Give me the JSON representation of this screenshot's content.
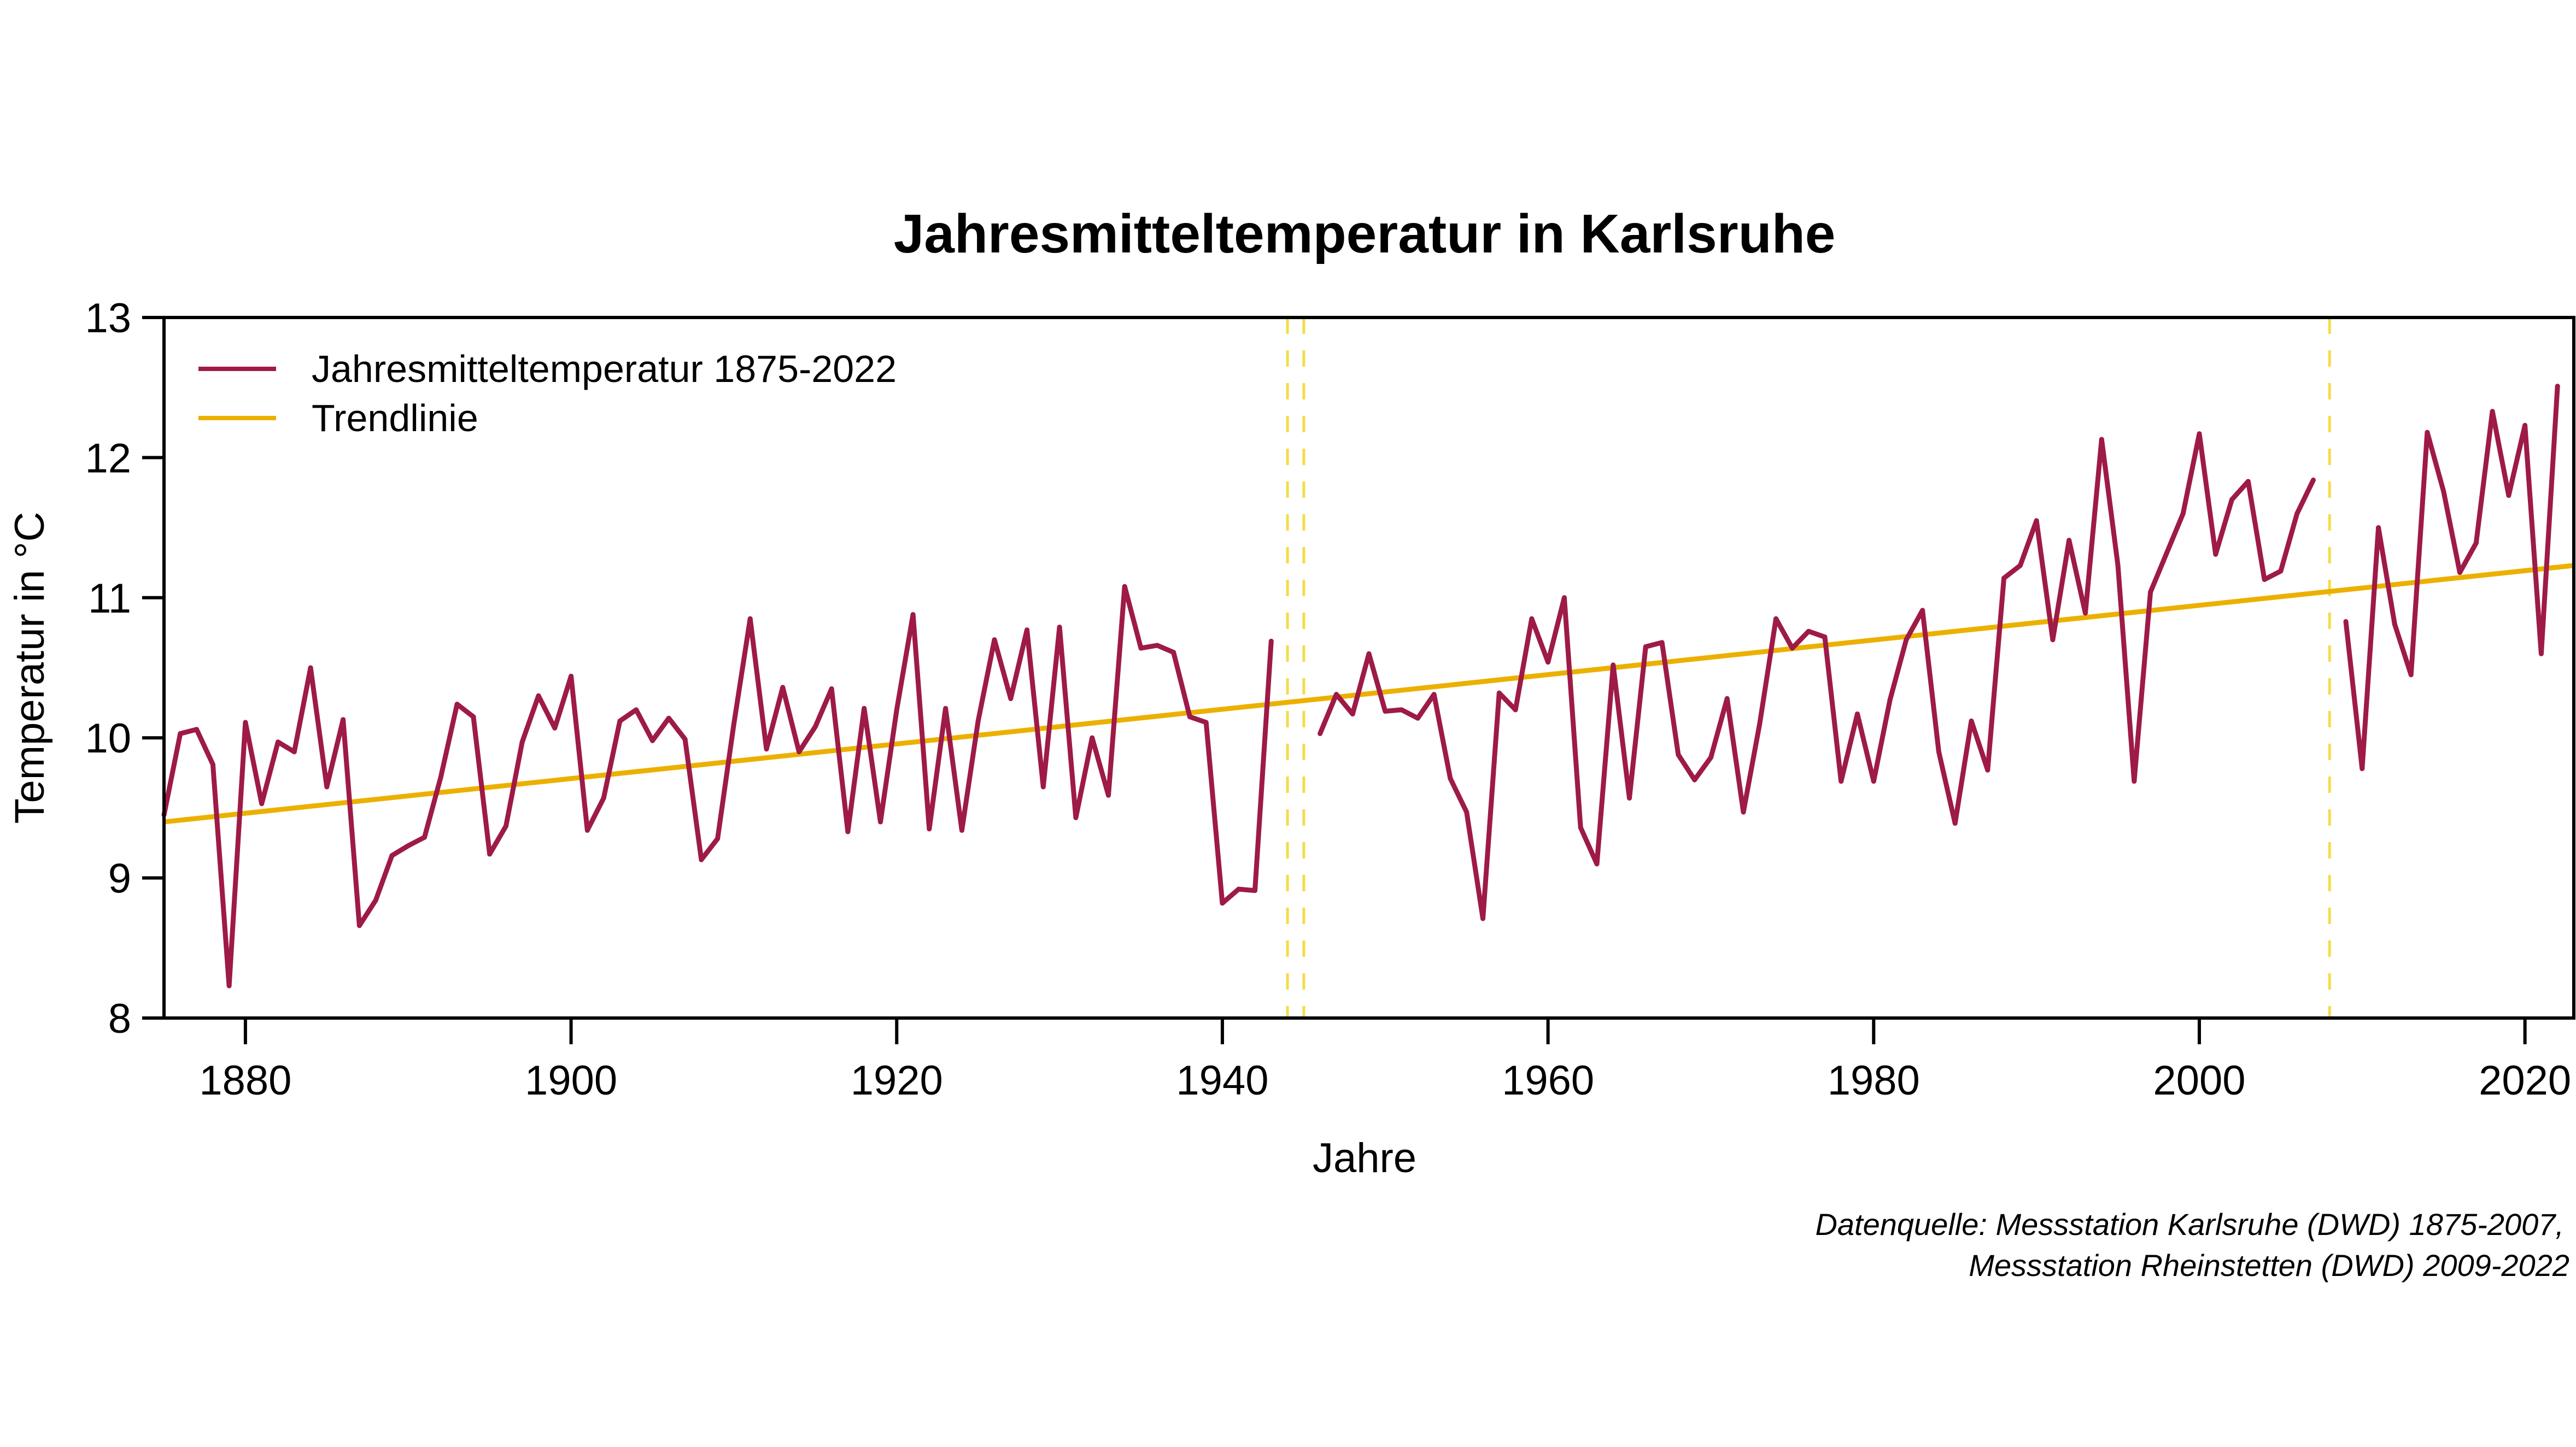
{
  "chart_data": {
    "type": "line",
    "title": "Jahresmitteltemperatur in Karlsruhe",
    "xlabel": "Jahre",
    "ylabel": "Temperatur in °C",
    "xlim": [
      1875,
      2023
    ],
    "ylim": [
      8,
      13
    ],
    "x_ticks": [
      1880,
      1900,
      1920,
      1940,
      1960,
      1980,
      2000,
      2020
    ],
    "y_ticks": [
      8,
      9,
      10,
      11,
      12,
      13
    ],
    "grid": false,
    "legend_position": "top-left",
    "colors": {
      "series": "#9e1a47",
      "trend": "#ebb000",
      "marker_lines": "#f5dc46",
      "axis": "#000000"
    },
    "series": [
      {
        "name": "Jahresmitteltemperatur 1875-2022",
        "x": [
          1875,
          1876,
          1877,
          1878,
          1879,
          1880,
          1881,
          1882,
          1883,
          1884,
          1885,
          1886,
          1887,
          1888,
          1889,
          1890,
          1891,
          1892,
          1893,
          1894,
          1895,
          1896,
          1897,
          1898,
          1899,
          1900,
          1901,
          1902,
          1903,
          1904,
          1905,
          1906,
          1907,
          1908,
          1909,
          1910,
          1911,
          1912,
          1913,
          1914,
          1915,
          1916,
          1917,
          1918,
          1919,
          1920,
          1921,
          1922,
          1923,
          1924,
          1925,
          1926,
          1927,
          1928,
          1929,
          1930,
          1931,
          1932,
          1933,
          1934,
          1935,
          1936,
          1937,
          1938,
          1939,
          1940,
          1941,
          1942,
          1943,
          1944,
          1945,
          1946,
          1947,
          1948,
          1949,
          1950,
          1951,
          1952,
          1953,
          1954,
          1955,
          1956,
          1957,
          1958,
          1959,
          1960,
          1961,
          1962,
          1963,
          1964,
          1965,
          1966,
          1967,
          1968,
          1969,
          1970,
          1971,
          1972,
          1973,
          1974,
          1975,
          1976,
          1977,
          1978,
          1979,
          1980,
          1981,
          1982,
          1983,
          1984,
          1985,
          1986,
          1987,
          1988,
          1989,
          1990,
          1991,
          1992,
          1993,
          1994,
          1995,
          1996,
          1997,
          1998,
          1999,
          2000,
          2001,
          2002,
          2003,
          2004,
          2005,
          2006,
          2007,
          2008,
          2009,
          2010,
          2011,
          2012,
          2013,
          2014,
          2015,
          2016,
          2017,
          2018,
          2019,
          2020,
          2021,
          2022
        ],
        "values": [
          9.45,
          10.03,
          10.06,
          9.81,
          8.23,
          10.11,
          9.53,
          9.97,
          9.9,
          10.5,
          9.65,
          10.13,
          8.66,
          8.84,
          9.16,
          9.23,
          9.29,
          9.72,
          10.24,
          10.15,
          9.17,
          9.37,
          9.97,
          10.3,
          10.07,
          10.44,
          9.34,
          9.57,
          10.12,
          10.2,
          9.98,
          10.14,
          9.99,
          9.13,
          9.28,
          10.1,
          10.85,
          9.92,
          10.36,
          9.9,
          10.08,
          10.35,
          9.33,
          10.21,
          9.4,
          10.2,
          10.88,
          9.35,
          10.21,
          9.34,
          10.12,
          10.7,
          10.28,
          10.77,
          9.65,
          10.79,
          9.43,
          10.0,
          9.59,
          11.08,
          10.64,
          10.66,
          10.61,
          10.15,
          10.11,
          8.82,
          8.92,
          8.91,
          10.69,
          null,
          null,
          10.03,
          10.31,
          10.17,
          10.6,
          10.19,
          10.2,
          10.14,
          10.31,
          9.71,
          9.47,
          8.71,
          10.32,
          10.2,
          10.85,
          10.54,
          11.0,
          9.36,
          9.1,
          10.52,
          9.57,
          10.65,
          10.68,
          9.88,
          9.7,
          9.86,
          10.28,
          9.47,
          10.1,
          10.85,
          10.64,
          10.76,
          10.72,
          9.69,
          10.17,
          9.69,
          10.27,
          10.7,
          10.91,
          9.9,
          9.39,
          10.12,
          9.77,
          11.14,
          11.23,
          11.55,
          10.7,
          11.41,
          10.89,
          12.13,
          11.23,
          9.69,
          11.04,
          11.32,
          11.6,
          12.17,
          11.31,
          11.7,
          11.83,
          11.13,
          11.19,
          11.6,
          11.84,
          null,
          10.83,
          9.78,
          11.5,
          10.81,
          10.45,
          12.18,
          11.76,
          11.18,
          11.39,
          12.33,
          11.73,
          12.23,
          10.6,
          12.51
        ]
      },
      {
        "name": "Trendlinie",
        "x": [
          1875,
          2023
        ],
        "values": [
          9.4,
          11.23
        ]
      }
    ],
    "vertical_markers": [
      1944,
      1945,
      2008
    ],
    "annotations": [
      "Datenquelle: Messstation Karlsruhe (DWD) 1875-2007,",
      "Messstation Rheinstetten (DWD) 2009-2022"
    ]
  }
}
